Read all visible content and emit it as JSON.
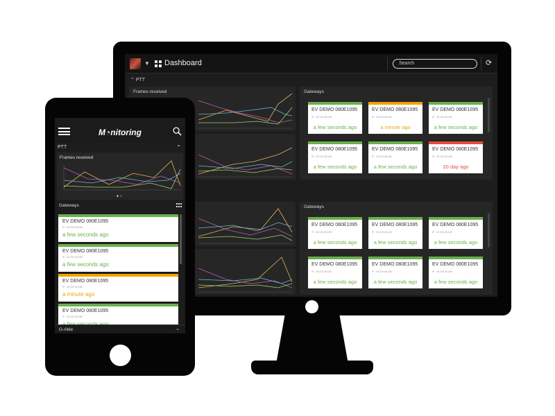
{
  "colors": {
    "ok": "#6ab04c",
    "warn": "#f0a30a",
    "error": "#e74c3c"
  },
  "desktop": {
    "topbar": {
      "title": "Dashboard",
      "search_placeholder": "Search",
      "icons": [
        "user-avatar",
        "chevron-down-icon",
        "grid-icon",
        "refresh-icon"
      ]
    },
    "section_label": "PTT",
    "chart_label": "Frames received",
    "gateways_label": "Gateways",
    "gateway_groups": [
      [
        {
          "name": "EV DEMO 080E1095",
          "ip": "IP : 49.229.48.168",
          "status": "a few seconds ago",
          "level": "ok"
        },
        {
          "name": "EV DEMO 080E1095",
          "ip": "IP : 49.229.48.168",
          "status": "a minute ago",
          "level": "warn"
        },
        {
          "name": "EV DEMO 080E1095",
          "ip": "IP : 49.229.48.168",
          "status": "a few seconds ago",
          "level": "ok"
        },
        {
          "name": "EV DEMO 080E1095",
          "ip": "IP : 49.229.48.168",
          "status": "a few seconds ago",
          "level": "ok"
        },
        {
          "name": "EV DEMO 080E1095",
          "ip": "IP : 49.229.48.168",
          "status": "a few seconds ago",
          "level": "ok"
        },
        {
          "name": "EV DEMO 080E1095",
          "ip": "IP : 49.229.48.168",
          "status": "20 day ago",
          "level": "error"
        }
      ],
      [
        {
          "name": "EV DEMO 080E1095",
          "ip": "IP : 49.229.48.168",
          "status": "a few seconds ago",
          "level": "ok"
        },
        {
          "name": "EV DEMO 080E1095",
          "ip": "IP : 49.229.48.168",
          "status": "a few seconds ago",
          "level": "ok"
        },
        {
          "name": "EV DEMO 080E1095",
          "ip": "IP : 49.229.48.168",
          "status": "a few seconds ago",
          "level": "ok"
        },
        {
          "name": "EV DEMO 080E1095",
          "ip": "IP : 49.229.48.168",
          "status": "a few seconds ago",
          "level": "ok"
        },
        {
          "name": "EV DEMO 080E1095",
          "ip": "IP : 49.229.48.168",
          "status": "a few seconds ago",
          "level": "ok"
        },
        {
          "name": "EV DEMO 080E1095",
          "ip": "IP : 49.229.48.168",
          "status": "a few seconds ago",
          "level": "ok"
        }
      ]
    ]
  },
  "mobile": {
    "brand": "M◔nitoring",
    "section_label": "PTT",
    "chart_label": "Frames received",
    "gateways_label": "Gateways",
    "gateways": [
      {
        "name": "EV DEMO 080E1095",
        "ip": "IP : 49.229.48.168",
        "status": "a few seconds ago",
        "level": "ok"
      },
      {
        "name": "EV DEMO 080E1095",
        "ip": "IP : 49.229.48.168",
        "status": "a few seconds ago",
        "level": "ok"
      },
      {
        "name": "EV DEMO 080E1095",
        "ip": "IP : 49.229.48.168",
        "status": "a minute ago",
        "level": "warn"
      },
      {
        "name": "EV DEMO 080E1095",
        "ip": "IP : 49.229.48.168",
        "status": "a few seconds ago",
        "level": "ok"
      }
    ],
    "next_section_label": "G-Able",
    "icons": [
      "hamburger-menu-icon",
      "search-icon",
      "chevron-up-icon",
      "grid-icon",
      "chevron-down-icon"
    ]
  }
}
